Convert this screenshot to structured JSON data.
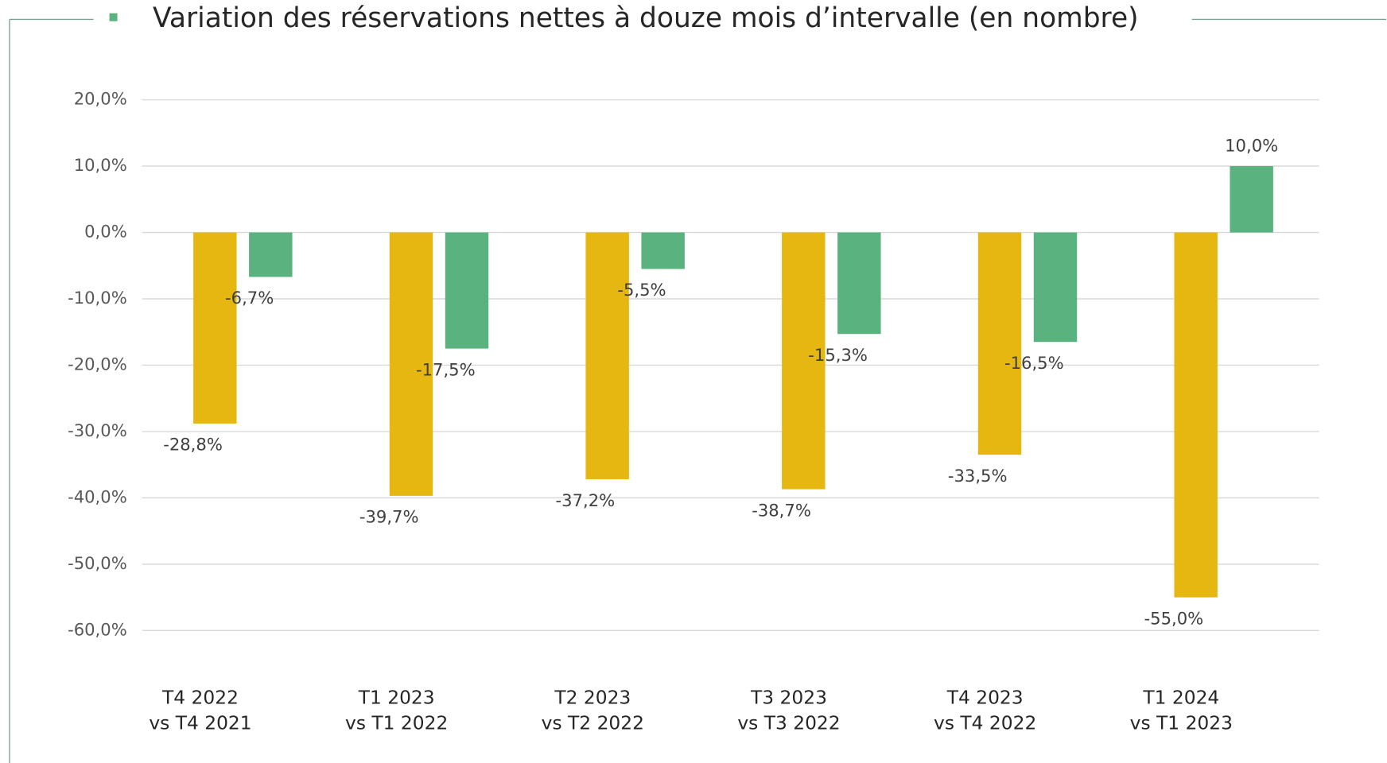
{
  "chart_data": {
    "type": "bar",
    "title": "Variation des réservations nettes à douze mois d’intervalle (en nombre)",
    "categories": [
      [
        "T4 2022",
        "vs T4 2021"
      ],
      [
        "T1 2023",
        "vs T1 2022"
      ],
      [
        "T2 2023",
        "vs T2 2022"
      ],
      [
        "T3 2023",
        "vs T3 2022"
      ],
      [
        "T4 2023",
        "vs T4 2022"
      ],
      [
        "T1 2024",
        "vs T1 2023"
      ]
    ],
    "series": [
      {
        "color": "#e6b711",
        "values": [
          -28.8,
          -39.7,
          -37.2,
          -38.7,
          -33.5,
          -55.0
        ],
        "value_labels": [
          "-28,8%",
          "-39,7%",
          "-37,2%",
          "-38,7%",
          "-33,5%",
          "-55,0%"
        ]
      },
      {
        "color": "#5ab27e",
        "values": [
          -6.7,
          -17.5,
          -5.5,
          -15.3,
          -16.5,
          10.0
        ],
        "value_labels": [
          "-6,7%",
          "-17,5%",
          "-5,5%",
          "-15,3%",
          "-16,5%",
          "10,0%"
        ]
      }
    ],
    "ylim": [
      -60,
      20
    ],
    "yticks": [
      {
        "value": 20,
        "label": "20,0%"
      },
      {
        "value": 10,
        "label": "10,0%"
      },
      {
        "value": 0,
        "label": "0,0%"
      },
      {
        "value": -10,
        "label": "-10,0%"
      },
      {
        "value": -20,
        "label": "-20,0%"
      },
      {
        "value": -30,
        "label": "-30,0%"
      },
      {
        "value": -40,
        "label": "-40,0%"
      },
      {
        "value": -50,
        "label": "-50,0%"
      },
      {
        "value": -60,
        "label": "-60,0%"
      }
    ],
    "grid": true
  }
}
